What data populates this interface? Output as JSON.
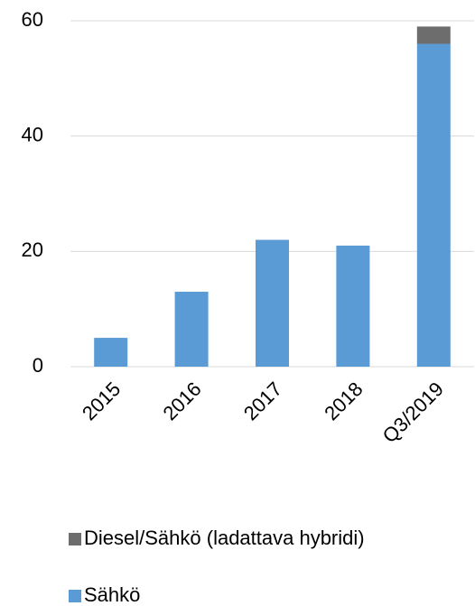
{
  "chart_data": {
    "type": "bar",
    "stacked": true,
    "categories": [
      "2015",
      "2016",
      "2017",
      "2018",
      "Q3/2019"
    ],
    "series": [
      {
        "name": "Sähkö",
        "color": "#5b9bd5",
        "values": [
          5,
          13,
          22,
          21,
          56
        ]
      },
      {
        "name": "Diesel/Sähkö (ladattava hybridi)",
        "color": "#6d6d6d",
        "values": [
          0,
          0,
          0,
          0,
          3
        ]
      }
    ],
    "ylim": [
      0,
      60
    ],
    "yticks": [
      0,
      20,
      40,
      60
    ],
    "grid": true,
    "legend": "bottom"
  }
}
